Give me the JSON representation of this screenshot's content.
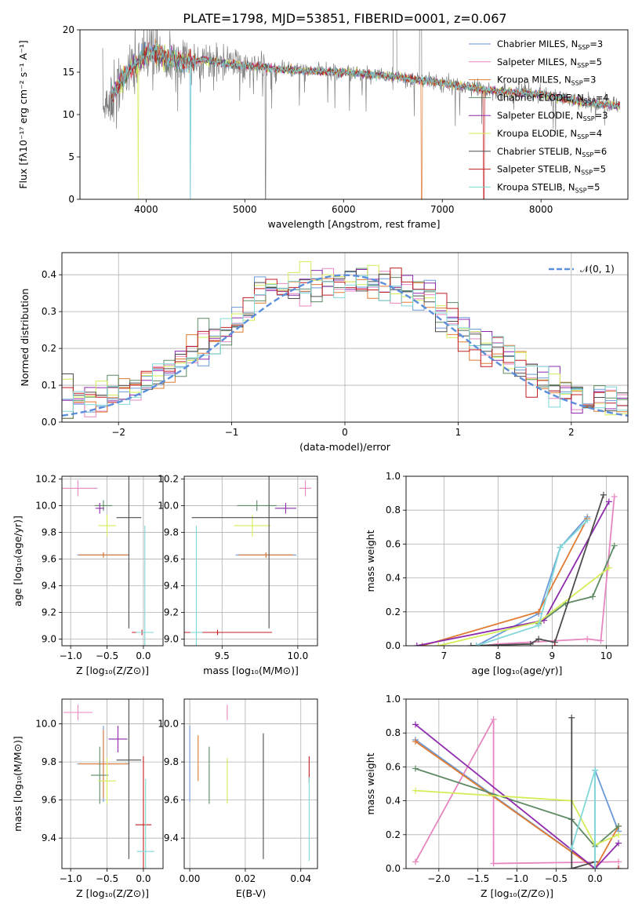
{
  "figure": {
    "title": "PLATE=1798, MJD=53851, FIBERID=0001, z=0.067"
  },
  "colors": {
    "chabrier_miles": "#6a9ad8",
    "salpeter_miles": "#e786c1",
    "kroupa_miles": "#e07b33",
    "chabrier_elodie": "#5d8a63",
    "salpeter_elodie": "#8e2bad",
    "kroupa_elodie": "#d4ec56",
    "chabrier_stelib": "#4d4d4d",
    "salpeter_stelib": "#c31f21",
    "kroupa_stelib": "#80d8d8",
    "data": "#808080",
    "normal": "#5b8fdb",
    "grid": "#b0b0b0"
  },
  "chart_data": [
    {
      "id": "spectrum",
      "type": "line",
      "xlabel": "wavelength [Angstrom, rest frame]",
      "ylabel": "Flux [fλ10⁻¹⁷ erg cm⁻² s⁻¹ A⁻¹]",
      "xlim": [
        3330,
        8880
      ],
      "ylim": [
        0,
        20
      ],
      "xticks": [
        4000,
        5000,
        6000,
        7000,
        8000
      ],
      "yticks": [
        0,
        5,
        10,
        15,
        20
      ],
      "legend_position": "top-right",
      "legend": [
        {
          "name": "Chabrier MILES, N",
          "sub": "SSP",
          "suffix": "=3",
          "color": "#6a9ad8"
        },
        {
          "name": "Salpeter MILES, N",
          "sub": "SSP",
          "suffix": "=5",
          "color": "#e786c1"
        },
        {
          "name": "Kroupa MILES, N",
          "sub": "SSP",
          "suffix": "=3",
          "color": "#e07b33"
        },
        {
          "name": "Chabrier ELODIE, N",
          "sub": "SSP",
          "suffix": "=4",
          "color": "#5d8a63"
        },
        {
          "name": "Salpeter ELODIE, N",
          "sub": "SSP",
          "suffix": "=3",
          "color": "#8e2bad"
        },
        {
          "name": "Kroupa ELODIE, N",
          "sub": "SSP",
          "suffix": "=4",
          "color": "#d4ec56"
        },
        {
          "name": "Chabrier STELIB, N",
          "sub": "SSP",
          "suffix": "=6",
          "color": "#4d4d4d"
        },
        {
          "name": "Salpeter STELIB, N",
          "sub": "SSP",
          "suffix": "=5",
          "color": "#c31f21"
        },
        {
          "name": "Kroupa STELIB, N",
          "sub": "SSP",
          "suffix": "=5",
          "color": "#80d8d8"
        }
      ],
      "continuum": [
        [
          3580,
          11.0
        ],
        [
          3650,
          12.0
        ],
        [
          3750,
          14.0
        ],
        [
          3850,
          15.5
        ],
        [
          3950,
          16.5
        ],
        [
          4050,
          17.5
        ],
        [
          4200,
          16.8
        ],
        [
          4400,
          16.2
        ],
        [
          4600,
          16.5
        ],
        [
          4800,
          16.0
        ],
        [
          5000,
          15.8
        ],
        [
          5500,
          15.2
        ],
        [
          6000,
          15.0
        ],
        [
          6500,
          14.5
        ],
        [
          7000,
          13.7
        ],
        [
          7500,
          12.8
        ],
        [
          8000,
          12.4
        ],
        [
          8500,
          11.3
        ],
        [
          8800,
          11.0
        ]
      ],
      "model_range": [
        3650,
        8800
      ],
      "data_range": [
        3560,
        8800
      ],
      "notes": "continuum values approximate the rendered model spectra"
    },
    {
      "id": "residuals",
      "type": "histogram",
      "xlabel": "(data-model)/error",
      "ylabel": "Normed distribution",
      "xlim": [
        -2.5,
        2.5
      ],
      "ylim": [
        0,
        0.46
      ],
      "xticks": [
        -2,
        -1,
        0,
        1,
        2
      ],
      "yticks": [
        0.0,
        0.1,
        0.2,
        0.3,
        0.4
      ],
      "bin_width": 0.1,
      "bin_start": -2.5,
      "legend": {
        "label": "𝒩(0, 1)",
        "position": "top-right"
      },
      "normal": {
        "mu": 0,
        "sigma": 1
      }
    },
    {
      "id": "age-vs-Z",
      "type": "scatter",
      "xlabel": "Z [log₁₀(Z/Z⊙)]",
      "ylabel": "age  [log₁₀(age/yr)]",
      "xlim": [
        -1.12,
        0.27
      ],
      "ylim": [
        8.95,
        10.22
      ],
      "xticks": [
        -1.0,
        -0.5,
        0.0
      ],
      "yticks": [
        9.0,
        9.2,
        9.4,
        9.6,
        9.8,
        10.0,
        10.2
      ],
      "points": [
        {
          "color": "#e786c1",
          "x": -0.9,
          "y": 10.13,
          "dx": 0.27,
          "dy": 0.06
        },
        {
          "color": "#6a9ad8",
          "x": -0.55,
          "y": 9.63,
          "dx": 0.36,
          "dy": 0.02
        },
        {
          "color": "#e07b33",
          "x": -0.55,
          "y": 9.63,
          "dx": 0.34,
          "dy": 0.02
        },
        {
          "color": "#5d8a63",
          "x": -0.55,
          "y": 10.0,
          "dx": 0.12,
          "dy": 0.04
        },
        {
          "color": "#8e2bad",
          "x": -0.6,
          "y": 9.98,
          "dx": 0.06,
          "dy": 0.04
        },
        {
          "color": "#d4ec56",
          "x": -0.5,
          "y": 9.85,
          "dx": 0.12,
          "dy": 0.08
        },
        {
          "color": "#4d4d4d",
          "x": -0.2,
          "y": 9.91,
          "dx": 0.17,
          "dy": 0.83
        },
        {
          "color": "#c31f21",
          "x": -0.02,
          "y": 9.05,
          "dx": 0.14,
          "dy": 0.02
        },
        {
          "color": "#80d8d8",
          "x": 0.02,
          "y": 9.05,
          "dx": 0.12,
          "dy": 0.8
        }
      ]
    },
    {
      "id": "age-vs-mass",
      "type": "scatter",
      "xlabel": "mass [log₁₀(M/M⊙)]",
      "ylabel": "",
      "xlim": [
        9.25,
        10.13
      ],
      "ylim": [
        8.95,
        10.22
      ],
      "xticks": [
        9.5,
        10.0
      ],
      "yticks": [
        9.0,
        9.2,
        9.4,
        9.6,
        9.8,
        10.0,
        10.2
      ],
      "points": [
        {
          "color": "#e786c1",
          "x": 10.05,
          "y": 10.13,
          "dx": 0.04,
          "dy": 0.06
        },
        {
          "color": "#6a9ad8",
          "x": 9.79,
          "y": 9.63,
          "dx": 0.2,
          "dy": 0.02
        },
        {
          "color": "#e07b33",
          "x": 9.79,
          "y": 9.63,
          "dx": 0.18,
          "dy": 0.02
        },
        {
          "color": "#5d8a63",
          "x": 9.73,
          "y": 10.0,
          "dx": 0.13,
          "dy": 0.04
        },
        {
          "color": "#8e2bad",
          "x": 9.92,
          "y": 9.98,
          "dx": 0.07,
          "dy": 0.04
        },
        {
          "color": "#d4ec56",
          "x": 9.7,
          "y": 9.85,
          "dx": 0.12,
          "dy": 0.08
        },
        {
          "color": "#4d4d4d",
          "x": 9.81,
          "y": 9.91,
          "dx": 0.51,
          "dy": 0.83
        },
        {
          "color": "#c31f21",
          "x": 9.47,
          "y": 9.05,
          "dx": 0.36,
          "dy": 0.02
        },
        {
          "color": "#80d8d8",
          "x": 9.33,
          "y": 9.05,
          "dx": 0.04,
          "dy": 0.8
        }
      ]
    },
    {
      "id": "weight-vs-age",
      "type": "line",
      "xlabel": "age  [log₁₀(age/yr)]",
      "ylabel": "mass weight",
      "xlim": [
        6.3,
        10.4
      ],
      "ylim": [
        0,
        1.0
      ],
      "xticks": [
        7,
        8,
        9,
        10
      ],
      "yticks": [
        0.0,
        0.2,
        0.4,
        0.6,
        0.8,
        1.0
      ],
      "series": [
        {
          "color": "#6a9ad8",
          "x": [
            7.6,
            8.75,
            9.15,
            9.65
          ],
          "y": [
            0.0,
            0.19,
            0.58,
            0.76
          ]
        },
        {
          "color": "#e786c1",
          "x": [
            7.7,
            8.0,
            9.65,
            9.9,
            10.15
          ],
          "y": [
            0.0,
            0.01,
            0.04,
            0.03,
            0.88
          ]
        },
        {
          "color": "#e07b33",
          "x": [
            6.6,
            8.75,
            9.65
          ],
          "y": [
            0.0,
            0.2,
            0.75
          ]
        },
        {
          "color": "#5d8a63",
          "x": [
            8.75,
            9.25,
            9.75,
            10.15
          ],
          "y": [
            0.13,
            0.25,
            0.29,
            0.59
          ]
        },
        {
          "color": "#8e2bad",
          "x": [
            6.5,
            8.85,
            10.05
          ],
          "y": [
            0.0,
            0.15,
            0.85
          ]
        },
        {
          "color": "#d4ec56",
          "x": [
            6.9,
            8.75,
            10.05
          ],
          "y": [
            0.0,
            0.14,
            0.46
          ]
        },
        {
          "color": "#4d4d4d",
          "x": [
            7.5,
            8.6,
            8.75,
            9.05,
            9.95
          ],
          "y": [
            0.0,
            0.01,
            0.04,
            0.02,
            0.89
          ]
        },
        {
          "color": "#c31f21",
          "x": [
            9.05
          ],
          "y": [
            0.0
          ]
        },
        {
          "color": "#80d8d8",
          "x": [
            7.6,
            8.75,
            9.15,
            9.65
          ],
          "y": [
            0.0,
            0.12,
            0.58,
            0.74
          ]
        }
      ]
    },
    {
      "id": "mass-vs-Z",
      "type": "scatter",
      "xlabel": "Z [log₁₀(Z/Z⊙)]",
      "ylabel": "mass [log₁₀(M/M⊙)]",
      "xlim": [
        -1.12,
        0.27
      ],
      "ylim": [
        9.24,
        10.13
      ],
      "xticks": [
        -1.0,
        -0.5,
        0.0
      ],
      "yticks": [
        9.4,
        9.6,
        9.8,
        10.0
      ],
      "points": [
        {
          "color": "#e786c1",
          "x": -0.9,
          "y": 10.06,
          "dx": 0.2,
          "dy": 0.04
        },
        {
          "color": "#6a9ad8",
          "x": -0.55,
          "y": 9.79,
          "dx": 0.36,
          "dy": 0.2
        },
        {
          "color": "#e07b33",
          "x": -0.55,
          "y": 9.79,
          "dx": 0.34,
          "dy": 0.18
        },
        {
          "color": "#5d8a63",
          "x": -0.6,
          "y": 9.73,
          "dx": 0.12,
          "dy": 0.15
        },
        {
          "color": "#8e2bad",
          "x": -0.35,
          "y": 9.92,
          "dx": 0.13,
          "dy": 0.07
        },
        {
          "color": "#d4ec56",
          "x": -0.5,
          "y": 9.7,
          "dx": 0.12,
          "dy": 0.12
        },
        {
          "color": "#4d4d4d",
          "x": -0.2,
          "y": 9.81,
          "dx": 0.17,
          "dy": 0.52
        },
        {
          "color": "#c31f21",
          "x": 0.0,
          "y": 9.47,
          "dx": 0.11,
          "dy": 0.36
        },
        {
          "color": "#80d8d8",
          "x": 0.03,
          "y": 9.33,
          "dx": 0.12,
          "dy": 0.38
        }
      ]
    },
    {
      "id": "mass-vs-EBV",
      "type": "scatter",
      "xlabel": "E(B-V)",
      "ylabel": "",
      "xlim": [
        -0.002,
        0.046
      ],
      "ylim": [
        9.24,
        10.13
      ],
      "xticks": [
        0.0,
        0.02,
        0.04
      ],
      "yticks": [
        9.4,
        9.6,
        9.8,
        10.0
      ],
      "points": [
        {
          "color": "#6a9ad8",
          "x": 0.0,
          "y": 9.79,
          "dx": 0.0,
          "dy": 0.2
        },
        {
          "color": "#e07b33",
          "x": 0.003,
          "y": 9.82,
          "dx": 0.0,
          "dy": 0.12
        },
        {
          "color": "#5d8a63",
          "x": 0.007,
          "y": 9.73,
          "dx": 0.0,
          "dy": 0.15
        },
        {
          "color": "#e786c1",
          "x": 0.0135,
          "y": 10.06,
          "dx": 0.0,
          "dy": 0.04
        },
        {
          "color": "#d4ec56",
          "x": 0.0135,
          "y": 9.7,
          "dx": 0.0,
          "dy": 0.12
        },
        {
          "color": "#4d4d4d",
          "x": 0.0265,
          "y": 9.62,
          "dx": 0.0,
          "dy": 0.33
        },
        {
          "color": "#c31f21",
          "x": 0.043,
          "y": 9.76,
          "dx": 0.0,
          "dy": 0.07
        },
        {
          "color": "#80d8d8",
          "x": 0.043,
          "y": 9.5,
          "dx": 0.0,
          "dy": 0.22
        }
      ]
    },
    {
      "id": "weight-vs-Z",
      "type": "line",
      "xlabel": "Z [log₁₀(Z/Z⊙)]",
      "ylabel": "mass weight",
      "xlim": [
        -2.42,
        0.42
      ],
      "ylim": [
        0,
        1.0
      ],
      "xticks": [
        -2.0,
        -1.5,
        -1.0,
        -0.5,
        0.0
      ],
      "yticks": [
        0.0,
        0.2,
        0.4,
        0.6,
        0.8,
        1.0
      ],
      "series": [
        {
          "color": "#6a9ad8",
          "x": [
            -2.3,
            0.0,
            0.0,
            0.3
          ],
          "y": [
            0.76,
            0.0,
            0.58,
            0.22
          ]
        },
        {
          "color": "#e786c1",
          "x": [
            -2.3,
            -1.3,
            -1.3,
            0.3
          ],
          "y": [
            0.04,
            0.88,
            0.03,
            0.04
          ]
        },
        {
          "color": "#e07b33",
          "x": [
            -2.3,
            0.0,
            0.3
          ],
          "y": [
            0.75,
            0.0,
            0.25
          ]
        },
        {
          "color": "#5d8a63",
          "x": [
            -2.3,
            -0.3,
            0.0,
            0.3
          ],
          "y": [
            0.59,
            0.29,
            0.13,
            0.25
          ]
        },
        {
          "color": "#8e2bad",
          "x": [
            -2.3,
            0.0,
            0.3
          ],
          "y": [
            0.85,
            0.0,
            0.15
          ]
        },
        {
          "color": "#d4ec56",
          "x": [
            -2.3,
            -0.3,
            0.0,
            0.3
          ],
          "y": [
            0.46,
            0.4,
            0.14,
            0.2
          ]
        },
        {
          "color": "#4d4d4d",
          "x": [
            -0.3,
            -0.3,
            0.0,
            0.0
          ],
          "y": [
            0.89,
            0.0,
            0.04,
            0.0
          ]
        },
        {
          "color": "#c31f21",
          "x": [
            0.3
          ],
          "y": [
            0.0
          ]
        },
        {
          "color": "#80d8d8",
          "x": [
            -0.3,
            0.0,
            0.0
          ],
          "y": [
            0.12,
            0.58,
            0.0
          ]
        }
      ]
    }
  ]
}
